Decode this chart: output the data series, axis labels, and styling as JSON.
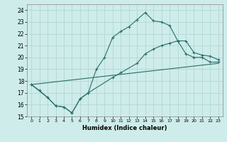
{
  "xlabel": "Humidex (Indice chaleur)",
  "bg_color": "#cdecea",
  "grid_color": "#aed4d0",
  "line_color": "#2a6e6a",
  "xlim": [
    -0.5,
    23.5
  ],
  "ylim": [
    15,
    24.5
  ],
  "yticks": [
    15,
    16,
    17,
    18,
    19,
    20,
    21,
    22,
    23,
    24
  ],
  "xticks": [
    0,
    1,
    2,
    3,
    4,
    5,
    6,
    7,
    8,
    9,
    10,
    11,
    12,
    13,
    14,
    15,
    16,
    17,
    18,
    19,
    20,
    21,
    22,
    23
  ],
  "line1_x": [
    0,
    1,
    2,
    3,
    4,
    5,
    6,
    7,
    8,
    9,
    10,
    11,
    12,
    13,
    14,
    15,
    16,
    17,
    18,
    19,
    20,
    21,
    22,
    23
  ],
  "line1_y": [
    17.7,
    17.2,
    16.6,
    15.9,
    15.8,
    15.3,
    16.5,
    17.0,
    19.0,
    20.0,
    21.7,
    22.2,
    22.6,
    23.2,
    23.8,
    23.1,
    23.0,
    22.7,
    21.4,
    20.3,
    20.0,
    20.0,
    19.6,
    19.6
  ],
  "line2_x": [
    0,
    2,
    3,
    4,
    5,
    6,
    7,
    10,
    11,
    13,
    14,
    15,
    16,
    17,
    18,
    19,
    20,
    21,
    22,
    23
  ],
  "line2_y": [
    17.7,
    16.6,
    15.9,
    15.8,
    15.3,
    16.5,
    17.0,
    18.3,
    18.7,
    19.5,
    20.3,
    20.7,
    21.0,
    21.2,
    21.4,
    21.4,
    20.4,
    20.2,
    20.1,
    19.8
  ],
  "line3_x": [
    0,
    23
  ],
  "line3_y": [
    17.7,
    19.5
  ]
}
